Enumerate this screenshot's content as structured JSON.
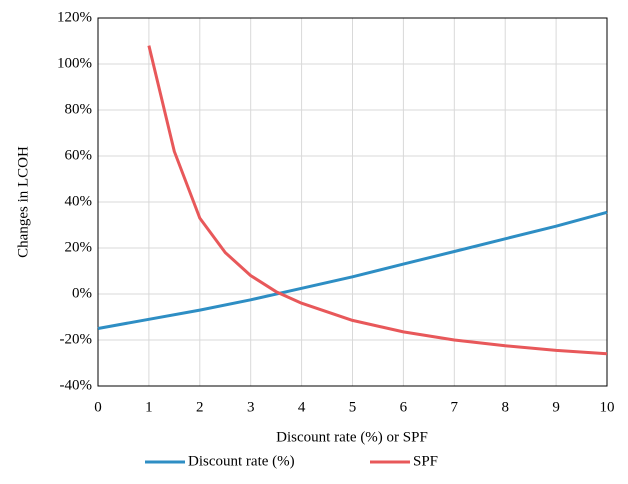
{
  "chart_data": {
    "type": "line",
    "xlabel": "Discount rate (%) or SPF",
    "ylabel": "Changes in LCOH",
    "xlim": [
      0,
      10
    ],
    "xticks": [
      0,
      1,
      2,
      3,
      4,
      5,
      6,
      7,
      8,
      9,
      10
    ],
    "ylim": [
      -40,
      120
    ],
    "yticks": [
      {
        "value": -40,
        "label": "-40%"
      },
      {
        "value": -20,
        "label": "-20%"
      },
      {
        "value": 0,
        "label": "0%"
      },
      {
        "value": 20,
        "label": "20%"
      },
      {
        "value": 40,
        "label": "40%"
      },
      {
        "value": 60,
        "label": "60%"
      },
      {
        "value": 80,
        "label": "80%"
      },
      {
        "value": 100,
        "label": "100%"
      },
      {
        "value": 120,
        "label": "120%"
      }
    ],
    "grid": true,
    "legend": "bottom",
    "series": [
      {
        "name": "Discount rate (%)",
        "color": "#2e8ec4",
        "x": [
          0,
          1,
          2,
          3,
          4,
          5,
          6,
          7,
          8,
          9,
          10
        ],
        "values": [
          -15,
          -11,
          -7,
          -2.5,
          2.5,
          7.5,
          13,
          18.5,
          24,
          29.5,
          35.5
        ]
      },
      {
        "name": "SPF",
        "color": "#e8585a",
        "x": [
          1,
          1.5,
          2,
          2.5,
          3,
          3.5,
          4,
          5,
          6,
          7,
          8,
          9,
          10
        ],
        "values": [
          108,
          62,
          33,
          18,
          8,
          1,
          -4,
          -11.5,
          -16.5,
          -20,
          -22.5,
          -24.5,
          -26
        ]
      }
    ]
  }
}
